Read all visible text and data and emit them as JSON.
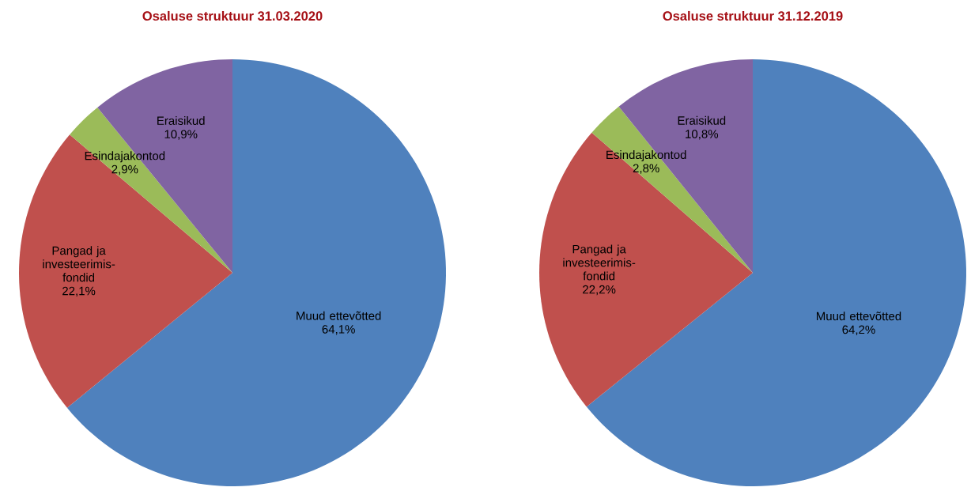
{
  "chart_data": [
    {
      "type": "pie",
      "title": "Osaluse struktuur 31.03.2020",
      "categories": [
        "Muud ettevõtted",
        "Pangad ja investeerimis-fondid",
        "Esindajakontod",
        "Eraisikud"
      ],
      "values": [
        64.1,
        22.1,
        2.9,
        10.9
      ],
      "value_labels": [
        "64,1%",
        "22,1%",
        "2,9%",
        "10,9%"
      ],
      "colors": [
        "#4f81bd",
        "#c0504d",
        "#9bbb59",
        "#8064a2"
      ]
    },
    {
      "type": "pie",
      "title": "Osaluse struktuur 31.12.2019",
      "categories": [
        "Muud ettevõtted",
        "Pangad ja investeerimis-fondid",
        "Esindajakontod",
        "Eraisikud"
      ],
      "values": [
        64.2,
        22.2,
        2.8,
        10.8
      ],
      "value_labels": [
        "64,2%",
        "22,2%",
        "2,8%",
        "10,8%"
      ],
      "colors": [
        "#4f81bd",
        "#c0504d",
        "#9bbb59",
        "#8064a2"
      ]
    }
  ]
}
